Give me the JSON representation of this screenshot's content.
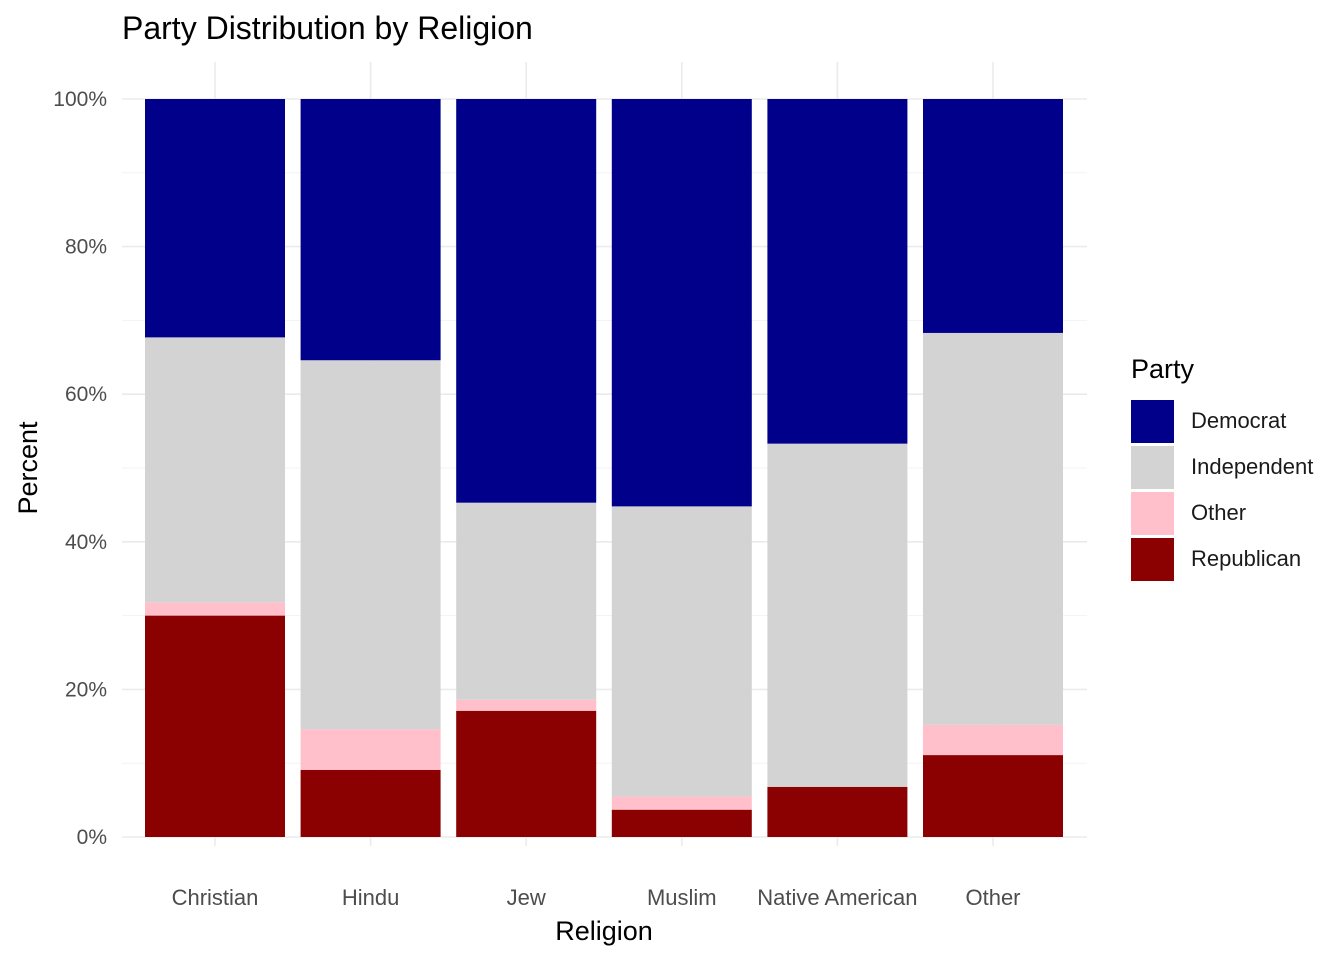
{
  "chart_data": {
    "type": "bar",
    "stacked": true,
    "title": "Party Distribution by Religion",
    "xlabel": "Religion",
    "ylabel": "Percent",
    "ylim": [
      0,
      100
    ],
    "y_ticks": [
      "0%",
      "20%",
      "40%",
      "60%",
      "80%",
      "100%"
    ],
    "y_tick_values": [
      0,
      20,
      40,
      60,
      80,
      100
    ],
    "categories": [
      "Christian",
      "Hindu",
      "Jew",
      "Muslim",
      "Native American",
      "Other"
    ],
    "series": [
      {
        "name": "Republican",
        "color": "#8B0000",
        "values": [
          30.0,
          9.1,
          17.1,
          3.7,
          6.8,
          11.1
        ]
      },
      {
        "name": "Other",
        "color": "#FFC0CB",
        "values": [
          1.8,
          5.5,
          1.5,
          1.8,
          0.0,
          4.1
        ]
      },
      {
        "name": "Independent",
        "color": "#D3D3D3",
        "values": [
          35.9,
          50.0,
          26.7,
          39.3,
          46.5,
          53.1
        ]
      },
      {
        "name": "Democrat",
        "color": "#00008B",
        "values": [
          32.3,
          35.4,
          54.7,
          55.2,
          46.7,
          31.7
        ]
      }
    ],
    "legend": {
      "title": "Party",
      "position": "right",
      "items": [
        {
          "label": "Democrat",
          "color": "#00008B"
        },
        {
          "label": "Independent",
          "color": "#D3D3D3"
        },
        {
          "label": "Other",
          "color": "#FFC0CB"
        },
        {
          "label": "Republican",
          "color": "#8B0000"
        }
      ]
    },
    "grid": true
  }
}
